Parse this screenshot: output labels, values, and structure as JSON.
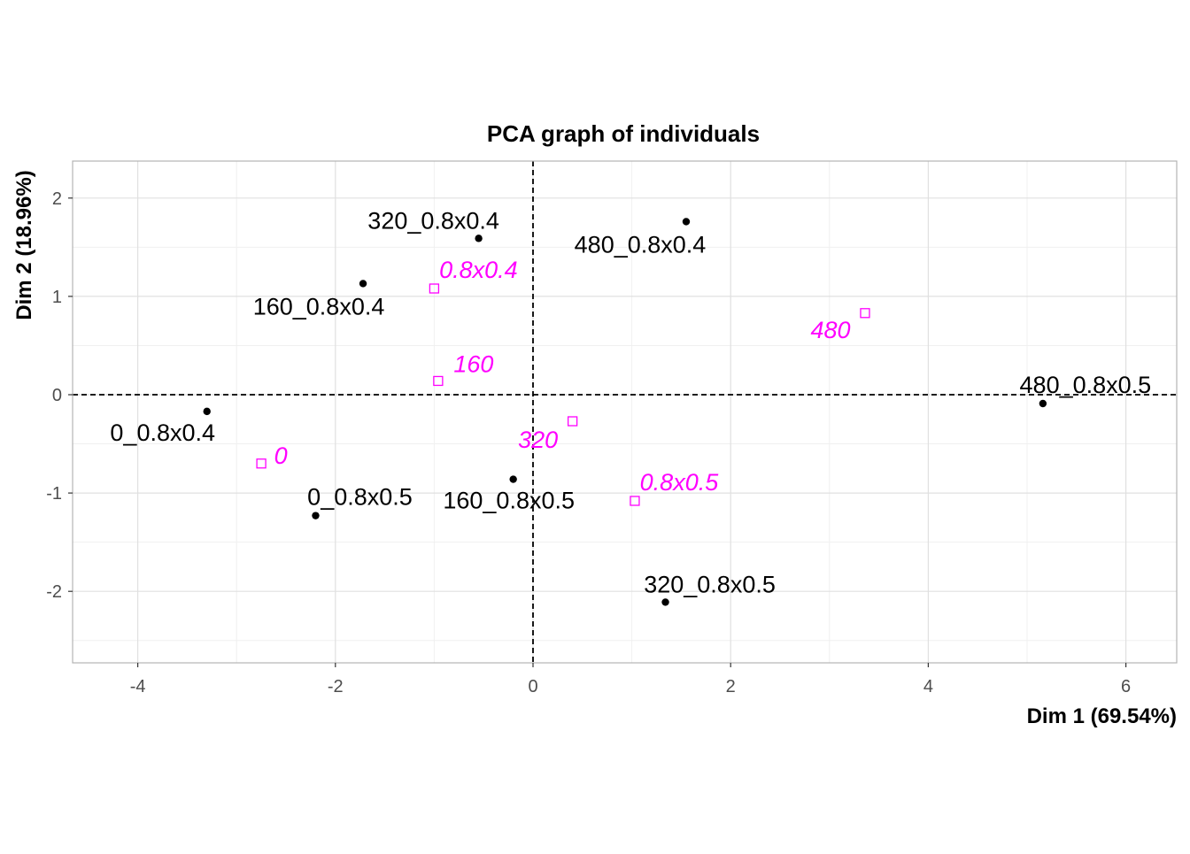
{
  "chart_data": {
    "type": "scatter",
    "title": "PCA graph of individuals",
    "xlabel": "Dim 1 (69.54%)",
    "ylabel": "Dim 2 (18.96%)",
    "xlim": [
      -4.65,
      6.5
    ],
    "ylim": [
      -2.72,
      2.4
    ],
    "xticks": [
      -4,
      -2,
      0,
      2,
      4,
      6
    ],
    "yticks": [
      -2,
      -1,
      0,
      1,
      2
    ],
    "grid": true,
    "reference_lines": {
      "x": 0,
      "y": 0,
      "style": "dashed"
    },
    "series": [
      {
        "marker": "filled-circle",
        "color": "#000000",
        "points": [
          {
            "label": "0_0.8x0.4",
            "x": -3.3,
            "y": -0.17
          },
          {
            "label": "0_0.8x0.5",
            "x": -2.2,
            "y": -1.23
          },
          {
            "label": "160_0.8x0.4",
            "x": -1.72,
            "y": 1.13
          },
          {
            "label": "160_0.8x0.5",
            "x": -0.2,
            "y": -0.86
          },
          {
            "label": "320_0.8x0.4",
            "x": -0.55,
            "y": 1.59
          },
          {
            "label": "320_0.8x0.5",
            "x": 1.34,
            "y": -2.11
          },
          {
            "label": "480_0.8x0.4",
            "x": 1.55,
            "y": 1.76
          },
          {
            "label": "480_0.8x0.5",
            "x": 5.16,
            "y": -0.09
          }
        ]
      },
      {
        "marker": "open-square",
        "color": "#ff00ff",
        "points": [
          {
            "label": "0",
            "x": -2.75,
            "y": -0.7
          },
          {
            "label": "160",
            "x": -0.96,
            "y": 0.14
          },
          {
            "label": "320",
            "x": 0.4,
            "y": -0.27
          },
          {
            "label": "480",
            "x": 3.36,
            "y": 0.83
          },
          {
            "label": "0.8x0.4",
            "x": -1.0,
            "y": 1.08
          },
          {
            "label": "0.8x0.5",
            "x": 1.03,
            "y": -1.08
          }
        ]
      }
    ]
  }
}
